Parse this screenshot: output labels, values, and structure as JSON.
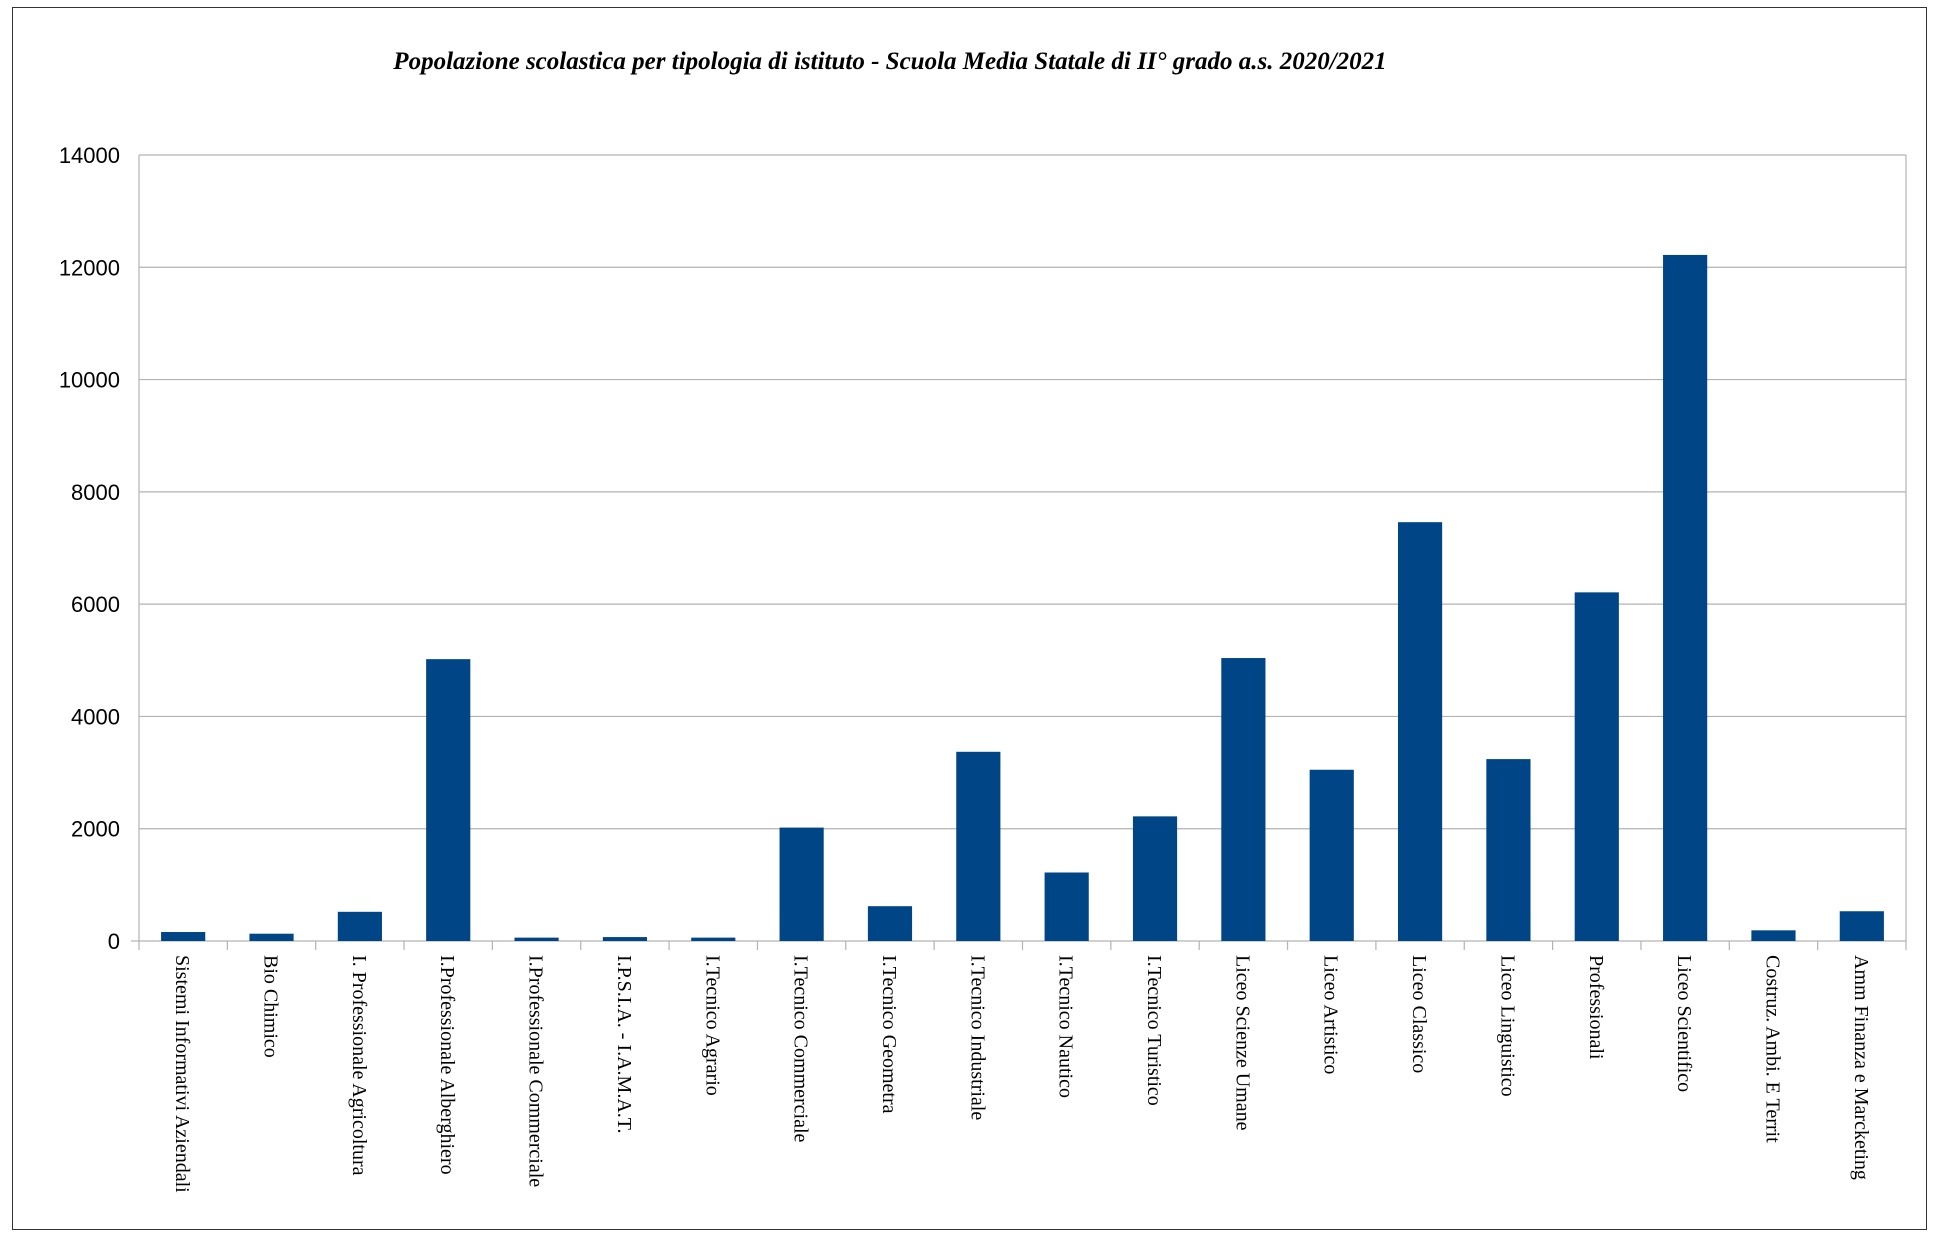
{
  "chart_data": {
    "type": "bar",
    "title": "Popolazione scolastica per tipologia di istituto - Scuola Media Statale di II° grado a.s. 2020/2021",
    "xlabel": "",
    "ylabel": "",
    "ylim": [
      0,
      14000
    ],
    "yticks": [
      "0",
      "2000",
      "4000",
      "6000",
      "8000",
      "10000",
      "12000",
      "14000"
    ],
    "grid": true,
    "legend": "none",
    "colors": {
      "bar": "#004586",
      "grid": "#b3b3b3",
      "axis": "#b3b3b3"
    },
    "categories": [
      "Sistemi Informativi Aziendali",
      "Bio Chimico",
      "I. Professionale Agricoltura",
      "I.Professionale Alberghiero",
      "I.Professionale Commerciale",
      "I.P.S.I.A.  -  I.A.M.A.T.",
      "I.Tecnico Agrario",
      "I.Tecnico Commerciale",
      "I.Tecnico Geometra",
      "I.Tecnico Industriale",
      "I.Tecnico Nautico",
      "I.Tecnico Turistico",
      "Liceo Scienze Umane",
      "Liceo Artistico",
      "Liceo Classico",
      "Liceo Linguistico",
      "Professionali",
      "Liceo Scientifico",
      "Costruz. Ambi. E Territ",
      "Amm Finanza e Marcketing"
    ],
    "values": [
      160,
      130,
      520,
      5020,
      60,
      70,
      60,
      2020,
      620,
      3370,
      1220,
      2220,
      5040,
      3050,
      7460,
      3240,
      6210,
      12220,
      190,
      530
    ]
  }
}
